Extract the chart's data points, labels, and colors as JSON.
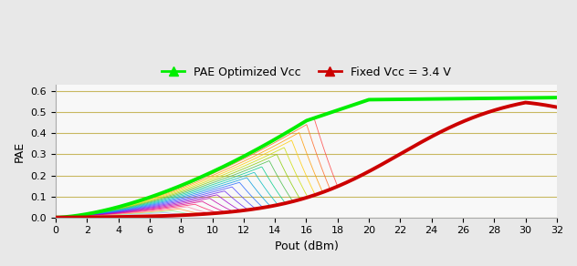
{
  "legend_labels": [
    "PAE Optimized Vcc",
    "Fixed Vcc = 3.4 V"
  ],
  "xlabel": "Pout (dBm)",
  "ylabel": "PAE",
  "xlim": [
    0,
    32
  ],
  "ylim": [
    0,
    0.63
  ],
  "yticks": [
    0.0,
    0.1,
    0.2,
    0.3,
    0.4,
    0.5,
    0.6
  ],
  "xticks": [
    0,
    2,
    4,
    6,
    8,
    10,
    12,
    14,
    16,
    18,
    20,
    22,
    24,
    26,
    28,
    30,
    32
  ],
  "bg_color": "#e8e8e8",
  "plot_bg_color": "#f8f8f8",
  "grid_color": "#c8b860",
  "num_middle_curves": 22,
  "green_color": "#00ee00",
  "red_color": "#cc0000"
}
